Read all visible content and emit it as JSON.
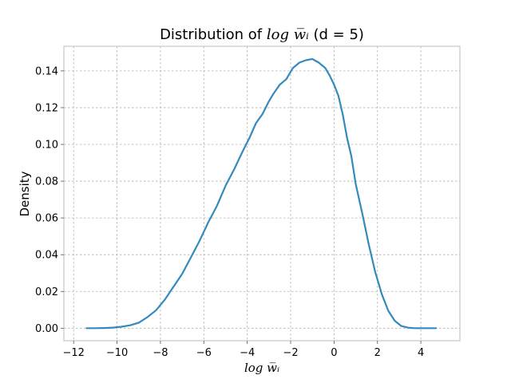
{
  "chart_data": {
    "type": "line",
    "title": "Distribution of log w̅ᵢ (d = 5)",
    "title_parts": {
      "prefix": "Distribution of ",
      "math": "log w̅ᵢ",
      "suffix": " (d = 5)"
    },
    "xlabel": "log w̅ᵢ",
    "ylabel": "Density",
    "xlim": [
      -12.45,
      5.8
    ],
    "ylim": [
      -0.0068,
      0.1534
    ],
    "xticks": [
      -12,
      -10,
      -8,
      -6,
      -4,
      -2,
      0,
      2,
      4
    ],
    "xtick_labels": [
      "−12",
      "−10",
      "−8",
      "−6",
      "−4",
      "−2",
      "0",
      "2",
      "4"
    ],
    "yticks": [
      0.0,
      0.02,
      0.04,
      0.06,
      0.08,
      0.1,
      0.12,
      0.14
    ],
    "ytick_labels": [
      "0.00",
      "0.02",
      "0.04",
      "0.06",
      "0.08",
      "0.10",
      "0.12",
      "0.14"
    ],
    "grid": true,
    "legend": "none",
    "colors": {
      "series": "#348abd",
      "grid": "#b0b0b0",
      "frame": "#bcbcbc"
    },
    "series": [
      {
        "x": [
          -11.4,
          -11.0,
          -10.6,
          -10.2,
          -9.8,
          -9.4,
          -9.0,
          -8.6,
          -8.2,
          -7.8,
          -7.4,
          -7.0,
          -6.6,
          -6.2,
          -5.8,
          -5.4,
          -5.0,
          -4.6,
          -4.2,
          -3.9,
          -3.6,
          -3.3,
          -3.0,
          -2.8,
          -2.5,
          -2.2,
          -1.9,
          -1.6,
          -1.3,
          -1.0,
          -0.7,
          -0.4,
          -0.2,
          0.0,
          0.2,
          0.4,
          0.6,
          0.8,
          1.0,
          1.3,
          1.6,
          1.9,
          2.2,
          2.5,
          2.8,
          3.1,
          3.4,
          3.7,
          4.0,
          4.3,
          4.7
        ],
        "y": [
          0.0,
          0.0,
          0.0001,
          0.0003,
          0.0008,
          0.0016,
          0.003,
          0.006,
          0.0098,
          0.0155,
          0.0225,
          0.0295,
          0.0385,
          0.0475,
          0.0575,
          0.0665,
          0.0775,
          0.0865,
          0.0965,
          0.1035,
          0.1115,
          0.1165,
          0.1235,
          0.1275,
          0.1325,
          0.1355,
          0.1415,
          0.1445,
          0.1458,
          0.1465,
          0.1445,
          0.1415,
          0.1375,
          0.1325,
          0.1265,
          0.1165,
          0.1035,
          0.0935,
          0.0785,
          0.0625,
          0.0455,
          0.0305,
          0.0185,
          0.0095,
          0.004,
          0.0012,
          0.0003,
          0.0,
          0.0,
          0.0,
          0.0
        ]
      }
    ]
  }
}
